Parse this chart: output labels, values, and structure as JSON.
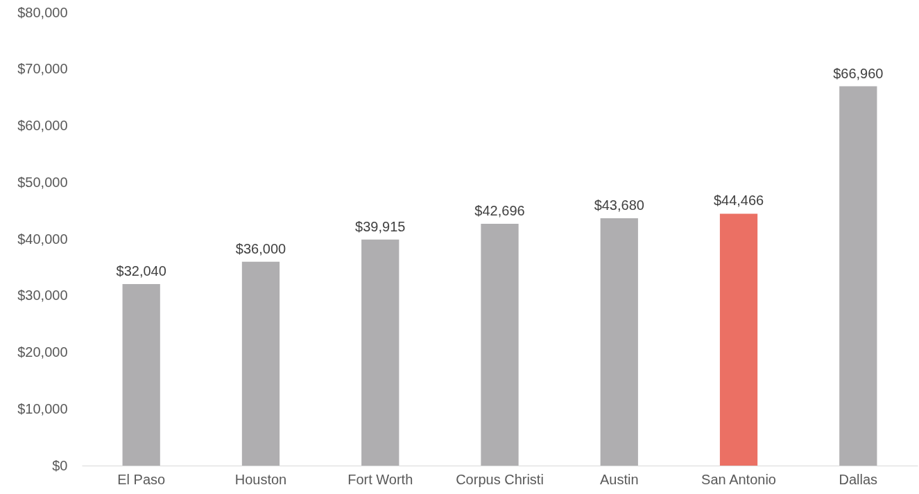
{
  "chart_data": {
    "type": "bar",
    "categories": [
      "El Paso",
      "Houston",
      "Fort Worth",
      "Corpus Christi",
      "Austin",
      "San Antonio",
      "Dallas"
    ],
    "values": [
      32040,
      36000,
      39915,
      42696,
      43680,
      44466,
      66960
    ],
    "colors": [
      "#afaeb0",
      "#afaeb0",
      "#afaeb0",
      "#afaeb0",
      "#afaeb0",
      "#eb7064",
      "#afaeb0"
    ],
    "value_labels": [
      "$32,040",
      "$36,000",
      "$39,915",
      "$42,696",
      "$43,680",
      "$44,466",
      "$66,960"
    ],
    "ylim": [
      0,
      80000
    ],
    "yticks": [
      {
        "value": 0,
        "label": "$0"
      },
      {
        "value": 10000,
        "label": "$10,000"
      },
      {
        "value": 20000,
        "label": "$20,000"
      },
      {
        "value": 30000,
        "label": "$30,000"
      },
      {
        "value": 40000,
        "label": "$40,000"
      },
      {
        "value": 50000,
        "label": "$50,000"
      },
      {
        "value": 60000,
        "label": "$60,000"
      },
      {
        "value": 70000,
        "label": "$70,000"
      },
      {
        "value": 80000,
        "label": "$80,000"
      }
    ],
    "grid": false
  }
}
